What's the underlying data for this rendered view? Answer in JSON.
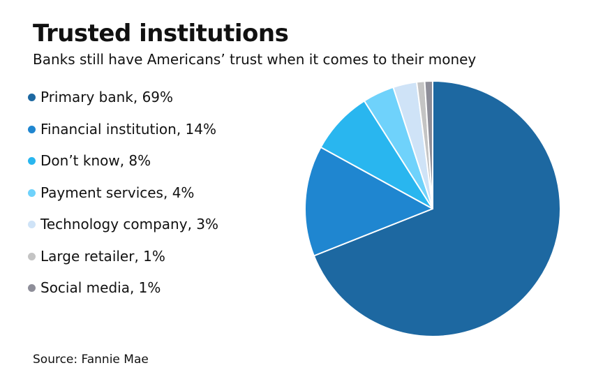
{
  "header": {
    "title": "Trusted institutions",
    "subtitle": "Banks still have Americans’ trust when it comes to their money"
  },
  "footer": {
    "source": "Source: Fannie Mae"
  },
  "chart_data": {
    "type": "pie",
    "title": "Trusted institutions",
    "subtitle": "Banks still have Americans’ trust when it comes to their money",
    "legend_position": "left",
    "slices": [
      {
        "label": "Primary bank, 69%",
        "value": 69,
        "color": "#1d68a1"
      },
      {
        "label": "Financial institution, 14%",
        "value": 14,
        "color": "#1f86d0"
      },
      {
        "label": "Don’t know, 8%",
        "value": 8,
        "color": "#29b6ef"
      },
      {
        "label": "Payment services, 4%",
        "value": 4,
        "color": "#6fd2fb"
      },
      {
        "label": "Technology company, 3%",
        "value": 3,
        "color": "#cfe3f7"
      },
      {
        "label": "Large retailer, 1%",
        "value": 1,
        "color": "#c4c4c4"
      },
      {
        "label": "Social media, 1%",
        "value": 1,
        "color": "#8e8e99"
      }
    ]
  }
}
